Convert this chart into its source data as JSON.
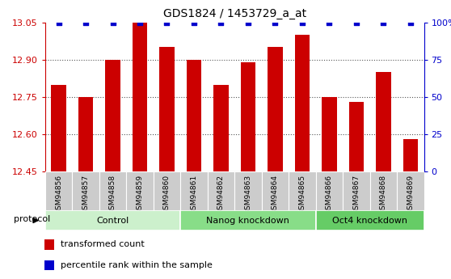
{
  "title": "GDS1824 / 1453729_a_at",
  "samples": [
    "GSM94856",
    "GSM94857",
    "GSM94858",
    "GSM94859",
    "GSM94860",
    "GSM94861",
    "GSM94862",
    "GSM94863",
    "GSM94864",
    "GSM94865",
    "GSM94866",
    "GSM94867",
    "GSM94868",
    "GSM94869"
  ],
  "bar_values": [
    12.8,
    12.75,
    12.9,
    13.05,
    12.95,
    12.9,
    12.8,
    12.89,
    12.95,
    13.0,
    12.75,
    12.73,
    12.85,
    12.58
  ],
  "percentile_values": [
    100,
    100,
    100,
    100,
    100,
    100,
    100,
    100,
    100,
    100,
    100,
    100,
    100,
    100
  ],
  "bar_color": "#cc0000",
  "percentile_color": "#0000cc",
  "ylim_left": [
    12.45,
    13.05
  ],
  "ylim_right": [
    0,
    100
  ],
  "yticks_left": [
    12.45,
    12.6,
    12.75,
    12.9,
    13.05
  ],
  "yticks_right": [
    0,
    25,
    50,
    75,
    100
  ],
  "ytick_labels_right": [
    "0",
    "25",
    "50",
    "75",
    "100%"
  ],
  "groups": [
    {
      "label": "Control",
      "start": 0,
      "end": 4,
      "color": "#ccf0cc"
    },
    {
      "label": "Nanog knockdown",
      "start": 5,
      "end": 9,
      "color": "#88dd88"
    },
    {
      "label": "Oct4 knockdown",
      "start": 10,
      "end": 13,
      "color": "#66cc66"
    }
  ],
  "protocol_label": "protocol",
  "legend_items": [
    {
      "label": "transformed count",
      "color": "#cc0000"
    },
    {
      "label": "percentile rank within the sample",
      "color": "#0000cc"
    }
  ],
  "grid_color": "#555555",
  "tick_bg_color": "#cccccc",
  "bar_width": 0.55
}
